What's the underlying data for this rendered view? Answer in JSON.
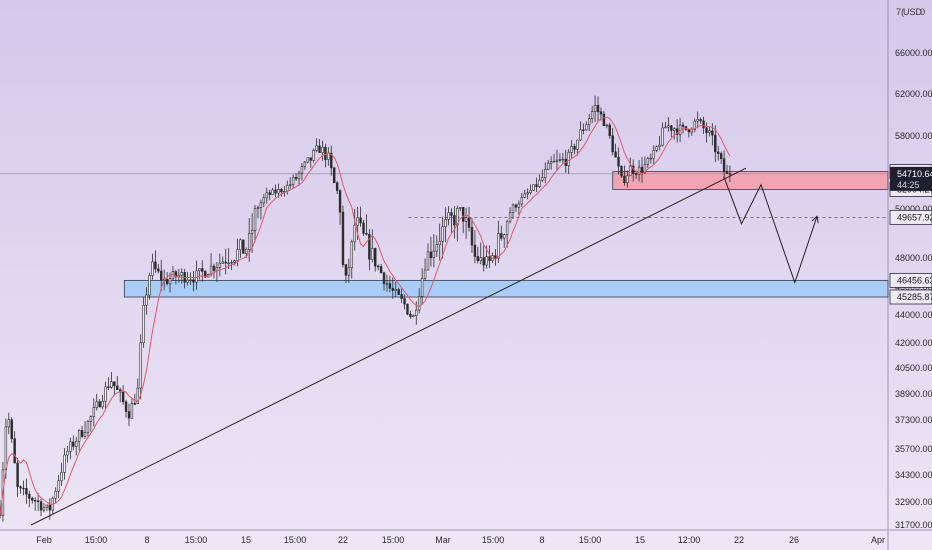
{
  "header": {
    "currency_label": "USD",
    "left_glyph": "7(",
    "right_glyph": "0"
  },
  "colors": {
    "bg_top": "#d5c8eb",
    "bg_bottom": "#ece6f5",
    "candle": "#2b2b2b",
    "ma": "#e05a6a",
    "resistance_zone": "#f0a5b4",
    "support_zone": "#a9cdf7",
    "trendline": "#222222",
    "projection": "#222222",
    "price_line": "#8a8a9a",
    "current_tag": "#1f1f2e"
  },
  "chart_data": {
    "type": "candlestick",
    "instrument_currency": "USD",
    "x_tick_labels": [
      "Feb",
      "15:00",
      "8",
      "15:00",
      "15",
      "15:00",
      "22",
      "15:00",
      "Mar",
      "15:00",
      "8",
      "15:00",
      "15",
      "12:00",
      "22",
      "26",
      "Apr"
    ],
    "y_ticks": [
      31700,
      32900,
      34300,
      35700,
      37300,
      38900,
      40500,
      42000,
      44000,
      46000,
      48000,
      50000,
      54000,
      58000,
      62000,
      66000
    ],
    "y_tick_labels": [
      "31700.00",
      "32900.00",
      "34300.00",
      "35700.00",
      "37300.00",
      "38900.00",
      "40500.00",
      "42000.00",
      "44000.00",
      "46000.00",
      "48000.00",
      "50000.00",
      "54000.00",
      "58000.00",
      "62000.00",
      "66000.00"
    ],
    "price_labels": [
      {
        "value": 54904.08,
        "label": "54904.08",
        "style": "outline"
      },
      {
        "value": 54710.64,
        "label": "54710.64",
        "style": "current",
        "countdown": "44:25"
      },
      {
        "value": 52904.27,
        "label": "52904.27",
        "style": "outline"
      },
      {
        "value": 49657.92,
        "label": "49657.92",
        "style": "outline"
      },
      {
        "value": 46456.63,
        "label": "46456.63",
        "style": "outline"
      },
      {
        "value": 45285.87,
        "label": "45285.87",
        "style": "outline"
      }
    ],
    "zones": [
      {
        "name": "resistance",
        "from": 52904.27,
        "to": 54904.08,
        "x_start": 0.69
      },
      {
        "name": "support",
        "from": 45285.87,
        "to": 46456.63,
        "x_start": 0.14
      }
    ],
    "target_level": {
      "value": 49657.92,
      "x_start": 0.46
    },
    "trendline": {
      "from": [
        0.035,
        31700
      ],
      "to": [
        0.84,
        55200
      ]
    },
    "projection": [
      [
        0.815,
        54500
      ],
      [
        0.835,
        49400
      ],
      [
        0.857,
        53600
      ],
      [
        0.895,
        46300
      ],
      [
        0.92,
        49700
      ]
    ],
    "anchors": [
      [
        0.0,
        32500
      ],
      [
        0.008,
        38000
      ],
      [
        0.02,
        33500
      ],
      [
        0.04,
        33000
      ],
      [
        0.055,
        32400
      ],
      [
        0.075,
        35500
      ],
      [
        0.1,
        37200
      ],
      [
        0.125,
        39800
      ],
      [
        0.145,
        37700
      ],
      [
        0.155,
        39000
      ],
      [
        0.162,
        44500
      ],
      [
        0.17,
        47500
      ],
      [
        0.185,
        46400
      ],
      [
        0.2,
        46800
      ],
      [
        0.22,
        46700
      ],
      [
        0.25,
        47800
      ],
      [
        0.28,
        48500
      ],
      [
        0.3,
        52000
      ],
      [
        0.32,
        53000
      ],
      [
        0.34,
        55000
      ],
      [
        0.36,
        57000
      ],
      [
        0.37,
        56000
      ],
      [
        0.38,
        52500
      ],
      [
        0.388,
        46000
      ],
      [
        0.4,
        49500
      ],
      [
        0.42,
        48000
      ],
      [
        0.44,
        45800
      ],
      [
        0.455,
        44800
      ],
      [
        0.465,
        43700
      ],
      [
        0.48,
        48000
      ],
      [
        0.5,
        49200
      ],
      [
        0.52,
        50000
      ],
      [
        0.535,
        48000
      ],
      [
        0.55,
        47600
      ],
      [
        0.565,
        49000
      ],
      [
        0.58,
        50500
      ],
      [
        0.6,
        53000
      ],
      [
        0.62,
        55500
      ],
      [
        0.64,
        56000
      ],
      [
        0.655,
        58500
      ],
      [
        0.67,
        60800
      ],
      [
        0.68,
        59500
      ],
      [
        0.69,
        57000
      ],
      [
        0.7,
        54000
      ],
      [
        0.71,
        55200
      ],
      [
        0.72,
        55000
      ],
      [
        0.735,
        56000
      ],
      [
        0.75,
        59000
      ],
      [
        0.77,
        58500
      ],
      [
        0.785,
        59400
      ],
      [
        0.8,
        58000
      ],
      [
        0.81,
        56000
      ],
      [
        0.818,
        54500
      ],
      [
        0.822,
        54710.64
      ]
    ]
  }
}
